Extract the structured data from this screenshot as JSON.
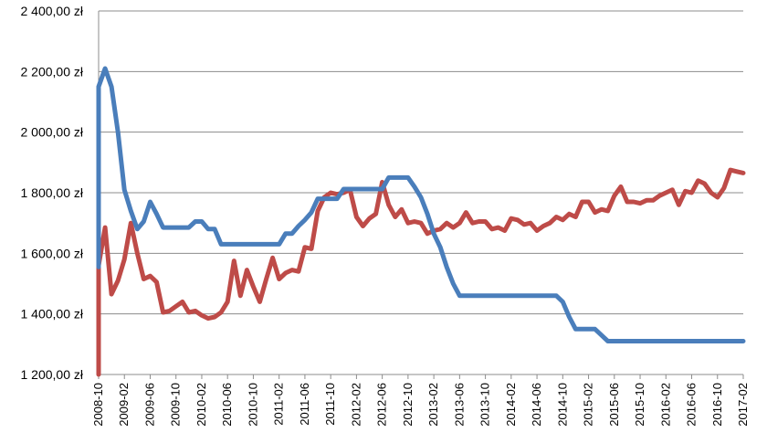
{
  "chart_data": {
    "type": "line",
    "title": "",
    "xlabel": "",
    "ylabel": "",
    "ylim": [
      1200,
      2400
    ],
    "y_ticks": [
      1200,
      1400,
      1600,
      1800,
      2000,
      2200,
      2400
    ],
    "y_tick_labels": [
      "1 200,00 zł",
      "1 400,00 zł",
      "1 600,00 zł",
      "1 800,00 zł",
      "2 000,00 zł",
      "2 200,00 zł",
      "2 400,00 zł"
    ],
    "x_tick_labels": [
      "2008-10",
      "2009-02",
      "2009-06",
      "2009-10",
      "2010-02",
      "2010-06",
      "2010-10",
      "2011-02",
      "2011-06",
      "2011-10",
      "2012-02",
      "2012-06",
      "2012-10",
      "2013-02",
      "2013-06",
      "2013-10",
      "2014-02",
      "2014-06",
      "2014-10",
      "2015-02",
      "2015-06",
      "2015-10",
      "2016-02",
      "2016-06",
      "2016-10",
      "2017-02"
    ],
    "grid": "horizontal",
    "legend": "none",
    "series": [
      {
        "color": "#4a7ebb",
        "points": [
          [
            "2008-10",
            2150
          ],
          [
            "2008-11",
            2210
          ],
          [
            "2008-12",
            2150
          ],
          [
            "2009-01",
            2000
          ],
          [
            "2009-02",
            1810
          ],
          [
            "2009-03",
            1740
          ],
          [
            "2009-04",
            1680
          ],
          [
            "2009-05",
            1705
          ],
          [
            "2009-06",
            1770
          ],
          [
            "2009-07",
            1730
          ],
          [
            "2009-08",
            1685
          ],
          [
            "2009-09",
            1685
          ],
          [
            "2009-10",
            1685
          ],
          [
            "2009-11",
            1685
          ],
          [
            "2009-12",
            1685
          ],
          [
            "2010-01",
            1705
          ],
          [
            "2010-02",
            1705
          ],
          [
            "2010-03",
            1680
          ],
          [
            "2010-04",
            1680
          ],
          [
            "2010-05",
            1630
          ],
          [
            "2010-06",
            1630
          ],
          [
            "2010-07",
            1630
          ],
          [
            "2010-08",
            1630
          ],
          [
            "2010-09",
            1630
          ],
          [
            "2010-10",
            1630
          ],
          [
            "2010-11",
            1630
          ],
          [
            "2010-12",
            1630
          ],
          [
            "2011-01",
            1630
          ],
          [
            "2011-02",
            1630
          ],
          [
            "2011-03",
            1665
          ],
          [
            "2011-04",
            1665
          ],
          [
            "2011-05",
            1690
          ],
          [
            "2011-06",
            1710
          ],
          [
            "2011-07",
            1735
          ],
          [
            "2011-08",
            1780
          ],
          [
            "2011-09",
            1780
          ],
          [
            "2011-10",
            1780
          ],
          [
            "2011-11",
            1780
          ],
          [
            "2011-12",
            1812
          ],
          [
            "2012-01",
            1812
          ],
          [
            "2012-02",
            1812
          ],
          [
            "2012-03",
            1812
          ],
          [
            "2012-04",
            1812
          ],
          [
            "2012-05",
            1812
          ],
          [
            "2012-06",
            1812
          ],
          [
            "2012-07",
            1850
          ],
          [
            "2012-08",
            1850
          ],
          [
            "2012-09",
            1850
          ],
          [
            "2012-10",
            1850
          ],
          [
            "2012-11",
            1820
          ],
          [
            "2012-12",
            1785
          ],
          [
            "2013-01",
            1730
          ],
          [
            "2013-02",
            1665
          ],
          [
            "2013-03",
            1620
          ],
          [
            "2013-04",
            1555
          ],
          [
            "2013-05",
            1500
          ],
          [
            "2013-06",
            1460
          ],
          [
            "2013-07",
            1460
          ],
          [
            "2013-08",
            1460
          ],
          [
            "2013-09",
            1460
          ],
          [
            "2013-10",
            1460
          ],
          [
            "2013-11",
            1460
          ],
          [
            "2013-12",
            1460
          ],
          [
            "2014-01",
            1460
          ],
          [
            "2014-02",
            1460
          ],
          [
            "2014-03",
            1460
          ],
          [
            "2014-04",
            1460
          ],
          [
            "2014-05",
            1460
          ],
          [
            "2014-06",
            1460
          ],
          [
            "2014-07",
            1460
          ],
          [
            "2014-08",
            1460
          ],
          [
            "2014-09",
            1460
          ],
          [
            "2014-10",
            1440
          ],
          [
            "2014-11",
            1390
          ],
          [
            "2014-12",
            1350
          ],
          [
            "2015-01",
            1350
          ],
          [
            "2015-02",
            1350
          ],
          [
            "2015-03",
            1350
          ],
          [
            "2015-04",
            1330
          ],
          [
            "2015-05",
            1310
          ],
          [
            "2015-06",
            1310
          ],
          [
            "2015-07",
            1310
          ],
          [
            "2015-08",
            1310
          ],
          [
            "2015-09",
            1310
          ],
          [
            "2015-10",
            1310
          ],
          [
            "2015-11",
            1310
          ],
          [
            "2015-12",
            1310
          ],
          [
            "2016-01",
            1310
          ],
          [
            "2016-02",
            1310
          ],
          [
            "2016-03",
            1310
          ],
          [
            "2016-04",
            1310
          ],
          [
            "2016-05",
            1310
          ],
          [
            "2016-06",
            1310
          ],
          [
            "2016-07",
            1310
          ],
          [
            "2016-08",
            1310
          ],
          [
            "2016-09",
            1310
          ],
          [
            "2016-10",
            1310
          ],
          [
            "2016-11",
            1310
          ],
          [
            "2016-12",
            1310
          ],
          [
            "2017-01",
            1310
          ],
          [
            "2017-02",
            1310
          ]
        ]
      },
      {
        "color": "#be4b48",
        "points": [
          [
            "2008-10",
            1560
          ],
          [
            "2008-11",
            1685
          ],
          [
            "2008-12",
            1465
          ],
          [
            "2009-01",
            1510
          ],
          [
            "2009-02",
            1580
          ],
          [
            "2009-03",
            1700
          ],
          [
            "2009-04",
            1600
          ],
          [
            "2009-05",
            1515
          ],
          [
            "2009-06",
            1525
          ],
          [
            "2009-07",
            1505
          ],
          [
            "2009-08",
            1405
          ],
          [
            "2009-09",
            1410
          ],
          [
            "2009-10",
            1425
          ],
          [
            "2009-11",
            1440
          ],
          [
            "2009-12",
            1405
          ],
          [
            "2010-01",
            1410
          ],
          [
            "2010-02",
            1395
          ],
          [
            "2010-03",
            1385
          ],
          [
            "2010-04",
            1390
          ],
          [
            "2010-05",
            1405
          ],
          [
            "2010-06",
            1440
          ],
          [
            "2010-07",
            1575
          ],
          [
            "2010-08",
            1460
          ],
          [
            "2010-09",
            1545
          ],
          [
            "2010-10",
            1490
          ],
          [
            "2010-11",
            1440
          ],
          [
            "2010-12",
            1515
          ],
          [
            "2011-01",
            1585
          ],
          [
            "2011-02",
            1515
          ],
          [
            "2011-03",
            1535
          ],
          [
            "2011-04",
            1545
          ],
          [
            "2011-05",
            1540
          ],
          [
            "2011-06",
            1620
          ],
          [
            "2011-07",
            1615
          ],
          [
            "2011-08",
            1740
          ],
          [
            "2011-09",
            1785
          ],
          [
            "2011-10",
            1800
          ],
          [
            "2011-11",
            1795
          ],
          [
            "2011-12",
            1800
          ],
          [
            "2012-01",
            1810
          ],
          [
            "2012-02",
            1720
          ],
          [
            "2012-03",
            1690
          ],
          [
            "2012-04",
            1715
          ],
          [
            "2012-05",
            1730
          ],
          [
            "2012-06",
            1835
          ],
          [
            "2012-07",
            1760
          ],
          [
            "2012-08",
            1720
          ],
          [
            "2012-09",
            1745
          ],
          [
            "2012-10",
            1700
          ],
          [
            "2012-11",
            1705
          ],
          [
            "2012-12",
            1700
          ],
          [
            "2013-01",
            1665
          ],
          [
            "2013-02",
            1675
          ],
          [
            "2013-03",
            1680
          ],
          [
            "2013-04",
            1700
          ],
          [
            "2013-05",
            1685
          ],
          [
            "2013-06",
            1700
          ],
          [
            "2013-07",
            1735
          ],
          [
            "2013-08",
            1700
          ],
          [
            "2013-09",
            1705
          ],
          [
            "2013-10",
            1705
          ],
          [
            "2013-11",
            1680
          ],
          [
            "2013-12",
            1685
          ],
          [
            "2014-01",
            1675
          ],
          [
            "2014-02",
            1715
          ],
          [
            "2014-03",
            1710
          ],
          [
            "2014-04",
            1695
          ],
          [
            "2014-05",
            1700
          ],
          [
            "2014-06",
            1675
          ],
          [
            "2014-07",
            1690
          ],
          [
            "2014-08",
            1700
          ],
          [
            "2014-09",
            1720
          ],
          [
            "2014-10",
            1710
          ],
          [
            "2014-11",
            1730
          ],
          [
            "2014-12",
            1720
          ],
          [
            "2015-01",
            1770
          ],
          [
            "2015-02",
            1770
          ],
          [
            "2015-03",
            1735
          ],
          [
            "2015-04",
            1745
          ],
          [
            "2015-05",
            1740
          ],
          [
            "2015-06",
            1790
          ],
          [
            "2015-07",
            1820
          ],
          [
            "2015-08",
            1770
          ],
          [
            "2015-09",
            1770
          ],
          [
            "2015-10",
            1765
          ],
          [
            "2015-11",
            1775
          ],
          [
            "2015-12",
            1775
          ],
          [
            "2016-01",
            1790
          ],
          [
            "2016-02",
            1800
          ],
          [
            "2016-03",
            1810
          ],
          [
            "2016-04",
            1760
          ],
          [
            "2016-05",
            1805
          ],
          [
            "2016-06",
            1800
          ],
          [
            "2016-07",
            1840
          ],
          [
            "2016-08",
            1830
          ],
          [
            "2016-09",
            1800
          ],
          [
            "2016-10",
            1785
          ],
          [
            "2016-11",
            1815
          ],
          [
            "2016-12",
            1875
          ],
          [
            "2017-01",
            1870
          ],
          [
            "2017-02",
            1865
          ]
        ]
      }
    ]
  }
}
